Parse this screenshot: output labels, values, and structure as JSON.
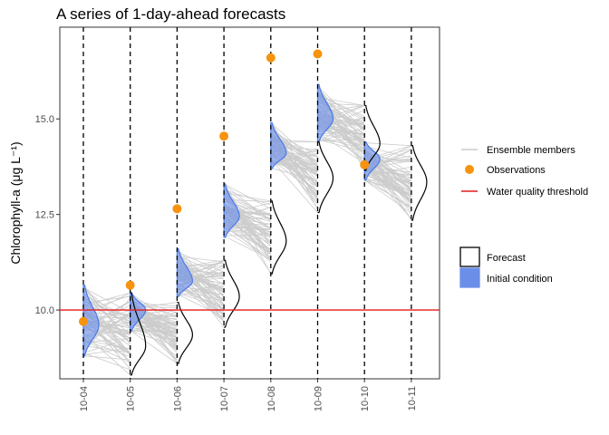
{
  "chart_data": {
    "type": "line",
    "title": "A series of 1-day-ahead forecasts",
    "ylabel": "Chlorophyll-a (μg L⁻¹)",
    "ylim": [
      8.2,
      17.4
    ],
    "yticks": [
      10.0,
      12.5,
      15.0
    ],
    "ytick_labels": [
      "10.0",
      "12.5",
      "15.0"
    ],
    "dates": [
      "10-04",
      "10-05",
      "10-06",
      "10-07",
      "10-08",
      "10-09",
      "10-10",
      "10-11"
    ],
    "observations": [
      {
        "date": "10-04",
        "value": 9.7
      },
      {
        "date": "10-05",
        "value": 10.65
      },
      {
        "date": "10-06",
        "value": 12.65
      },
      {
        "date": "10-07",
        "value": 14.55
      },
      {
        "date": "10-08",
        "value": 16.6
      },
      {
        "date": "10-09",
        "value": 16.7
      },
      {
        "date": "10-10",
        "value": 13.8
      }
    ],
    "threshold": 10.0,
    "initial_conditions": [
      {
        "date": "10-04",
        "low": 8.8,
        "high": 10.65,
        "mode": 9.6
      },
      {
        "date": "10-05",
        "low": 9.45,
        "high": 10.45,
        "mode": 10.0
      },
      {
        "date": "10-06",
        "low": 10.35,
        "high": 11.6,
        "mode": 10.75
      },
      {
        "date": "10-07",
        "low": 11.9,
        "high": 13.3,
        "mode": 12.45
      },
      {
        "date": "10-08",
        "low": 13.7,
        "high": 14.9,
        "mode": 14.1
      },
      {
        "date": "10-09",
        "low": 14.4,
        "high": 15.9,
        "mode": 15.0
      },
      {
        "date": "10-10",
        "low": 13.4,
        "high": 14.4,
        "mode": 13.95
      }
    ],
    "forecasts": [
      {
        "date": "10-05",
        "low": 8.3,
        "high": 10.45,
        "mode": 9.05
      },
      {
        "date": "10-06",
        "low": 8.6,
        "high": 10.2,
        "mode": 9.35
      },
      {
        "date": "10-07",
        "low": 9.55,
        "high": 11.3,
        "mode": 10.35
      },
      {
        "date": "10-08",
        "low": 10.95,
        "high": 12.85,
        "mode": 11.8
      },
      {
        "date": "10-09",
        "low": 12.55,
        "high": 14.4,
        "mode": 13.45
      },
      {
        "date": "10-10",
        "low": 13.65,
        "high": 15.35,
        "mode": 14.35
      },
      {
        "date": "10-11",
        "low": 12.35,
        "high": 14.3,
        "mode": 13.35
      }
    ],
    "legend": {
      "ensemble_members": "Ensemble members",
      "observations": "Observations",
      "threshold": "Water quality threshold",
      "forecast": "Forecast",
      "initial_condition": "Initial condition"
    },
    "colors": {
      "ensemble": "#cccccc",
      "observation": "#f7930e",
      "threshold": "#e31a1c",
      "initial_fill": "#6b8fe8",
      "initial_line": "#4a7be8",
      "forecast_line": "#000000",
      "panel_border": "#333333"
    },
    "grid": false,
    "legend_position": "right"
  }
}
